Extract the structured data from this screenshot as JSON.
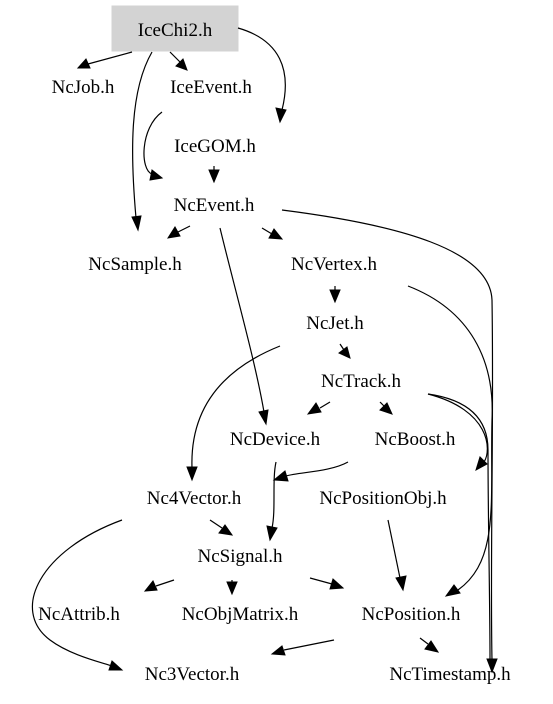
{
  "graph": {
    "root": "IceChi2.h",
    "nodes": [
      {
        "id": "IceChi2",
        "label": "IceChi2.h",
        "highlight": true
      },
      {
        "id": "NcJob",
        "label": "NcJob.h"
      },
      {
        "id": "IceEvent",
        "label": "IceEvent.h"
      },
      {
        "id": "IceGOM",
        "label": "IceGOM.h"
      },
      {
        "id": "NcEvent",
        "label": "NcEvent.h"
      },
      {
        "id": "NcSample",
        "label": "NcSample.h"
      },
      {
        "id": "NcVertex",
        "label": "NcVertex.h"
      },
      {
        "id": "NcJet",
        "label": "NcJet.h"
      },
      {
        "id": "NcTrack",
        "label": "NcTrack.h"
      },
      {
        "id": "NcDevice",
        "label": "NcDevice.h"
      },
      {
        "id": "NcBoost",
        "label": "NcBoost.h"
      },
      {
        "id": "Nc4Vector",
        "label": "Nc4Vector.h"
      },
      {
        "id": "NcPositionObj",
        "label": "NcPositionObj.h"
      },
      {
        "id": "NcSignal",
        "label": "NcSignal.h"
      },
      {
        "id": "NcAttrib",
        "label": "NcAttrib.h"
      },
      {
        "id": "NcObjMatrix",
        "label": "NcObjMatrix.h"
      },
      {
        "id": "NcPosition",
        "label": "NcPosition.h"
      },
      {
        "id": "Nc3Vector",
        "label": "Nc3Vector.h"
      },
      {
        "id": "NcTimestamp",
        "label": "NcTimestamp.h"
      }
    ],
    "edges": [
      {
        "from": "IceChi2",
        "to": "NcJob"
      },
      {
        "from": "IceChi2",
        "to": "IceEvent"
      },
      {
        "from": "IceChi2",
        "to": "IceGOM"
      },
      {
        "from": "IceChi2",
        "to": "NcSample"
      },
      {
        "from": "IceEvent",
        "to": "NcEvent"
      },
      {
        "from": "IceGOM",
        "to": "NcEvent"
      },
      {
        "from": "NcEvent",
        "to": "NcSample"
      },
      {
        "from": "NcEvent",
        "to": "NcVertex"
      },
      {
        "from": "NcEvent",
        "to": "NcDevice"
      },
      {
        "from": "NcEvent",
        "to": "NcTimestamp"
      },
      {
        "from": "NcVertex",
        "to": "NcJet"
      },
      {
        "from": "NcVertex",
        "to": "NcPosition"
      },
      {
        "from": "NcJet",
        "to": "NcTrack"
      },
      {
        "from": "NcJet",
        "to": "Nc4Vector"
      },
      {
        "from": "NcTrack",
        "to": "NcDevice"
      },
      {
        "from": "NcTrack",
        "to": "NcBoost"
      },
      {
        "from": "NcTrack",
        "to": "NcPositionObj"
      },
      {
        "from": "NcTrack",
        "to": "NcTimestamp"
      },
      {
        "from": "NcDevice",
        "to": "NcSignal"
      },
      {
        "from": "NcBoost",
        "to": "Nc4Vector"
      },
      {
        "from": "Nc4Vector",
        "to": "NcSignal"
      },
      {
        "from": "Nc4Vector",
        "to": "Nc3Vector"
      },
      {
        "from": "NcPositionObj",
        "to": "NcPosition"
      },
      {
        "from": "NcSignal",
        "to": "NcAttrib"
      },
      {
        "from": "NcSignal",
        "to": "NcObjMatrix"
      },
      {
        "from": "NcSignal",
        "to": "NcPosition"
      },
      {
        "from": "NcPosition",
        "to": "Nc3Vector"
      },
      {
        "from": "NcPosition",
        "to": "NcTimestamp"
      }
    ]
  },
  "colors": {
    "root_fill": "#d3d3d3",
    "edge": "#000000",
    "text": "#000000",
    "background": "#ffffff"
  }
}
